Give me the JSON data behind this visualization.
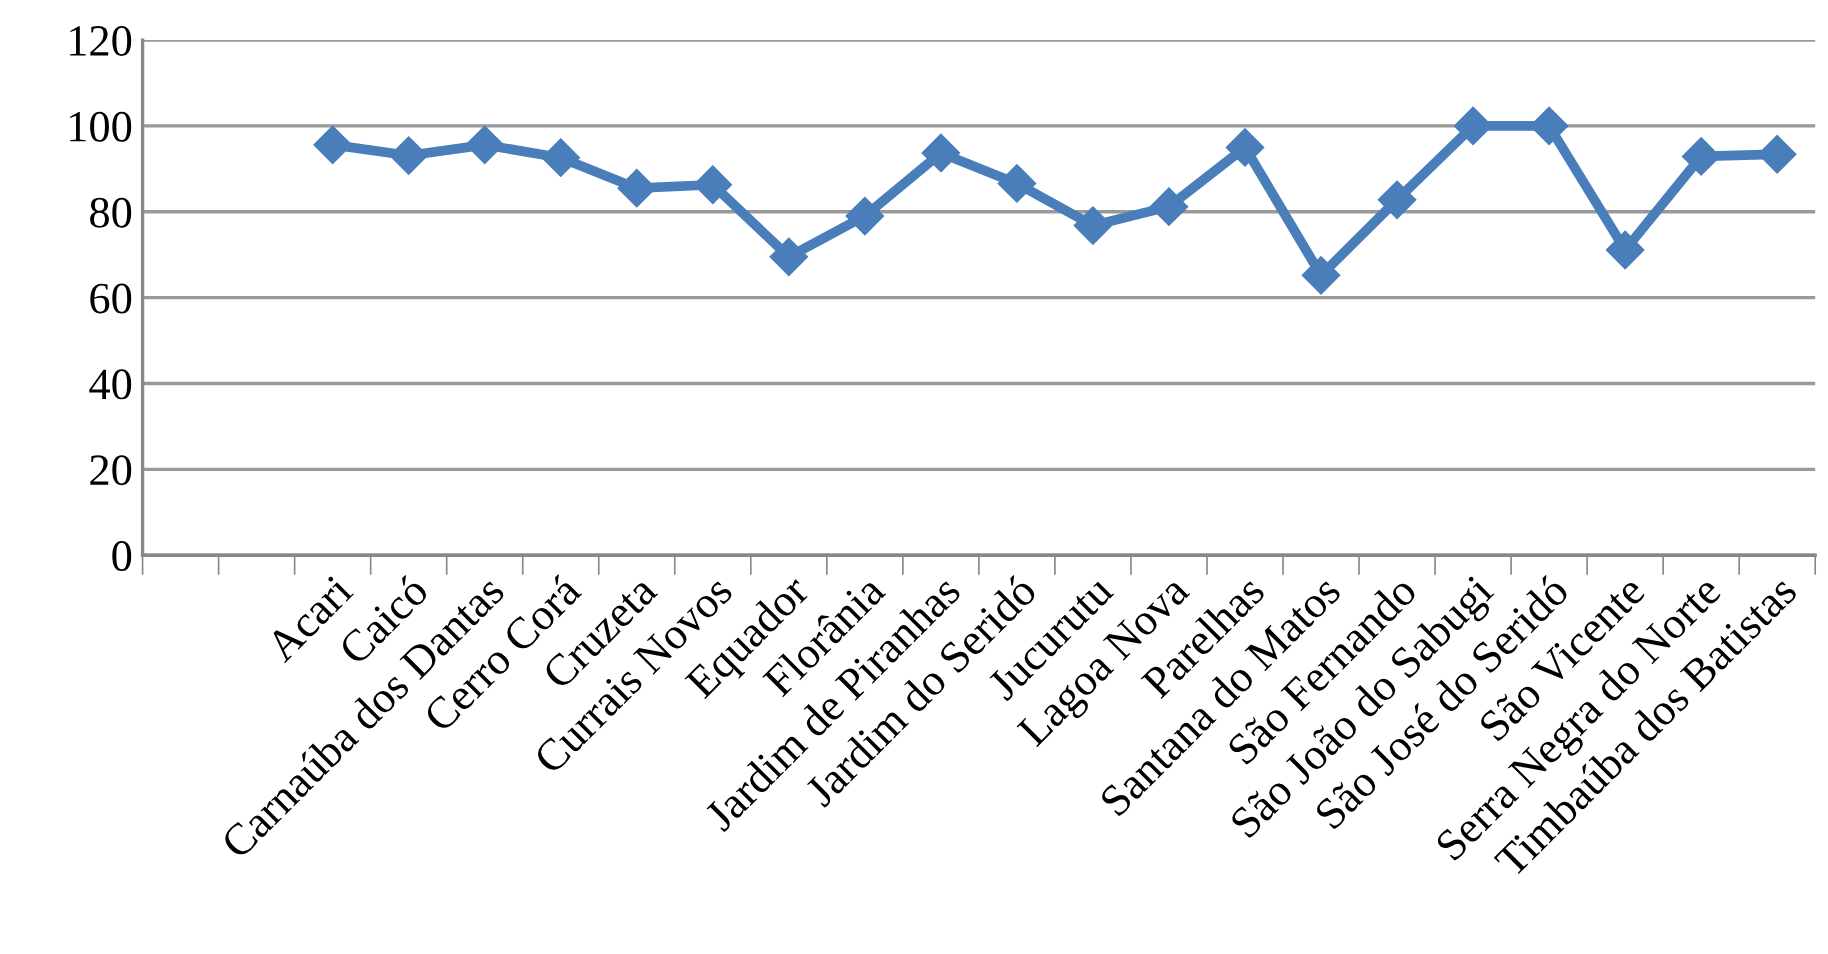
{
  "chart_data": {
    "type": "line",
    "categories": [
      null,
      null,
      "Acari",
      "Caicó",
      "Carnaúba dos Dantas",
      "Cerro Corá",
      "Cruzeta",
      "Currais Novos",
      "Equador",
      "Florânia",
      "Jardim de Piranhas",
      "Jardim do Seridó",
      "Jucurutu",
      "Lagoa Nova",
      "Parelhas",
      "Santana do Matos",
      "São Fernando",
      "São João do Sabugi",
      "São José do Seridó",
      "São Vicente",
      "Serra Negra do Norte",
      "Timbaúba dos Batistas"
    ],
    "series": [
      {
        "color": "#4a7ebb",
        "values": [
          null,
          null,
          95.6,
          93.1,
          95.6,
          92.6,
          85.5,
          86.3,
          69.5,
          79,
          93.7,
          86.6,
          76.8,
          81.2,
          95,
          65.2,
          82.8,
          100,
          100,
          71.1,
          92.9,
          93.4
        ]
      }
    ],
    "ylim": [
      0,
      120
    ],
    "yticks": [
      0,
      20,
      40,
      60,
      80,
      100,
      120
    ],
    "grid": "y",
    "marker": "diamond",
    "line_style": "solid",
    "legend": false
  }
}
